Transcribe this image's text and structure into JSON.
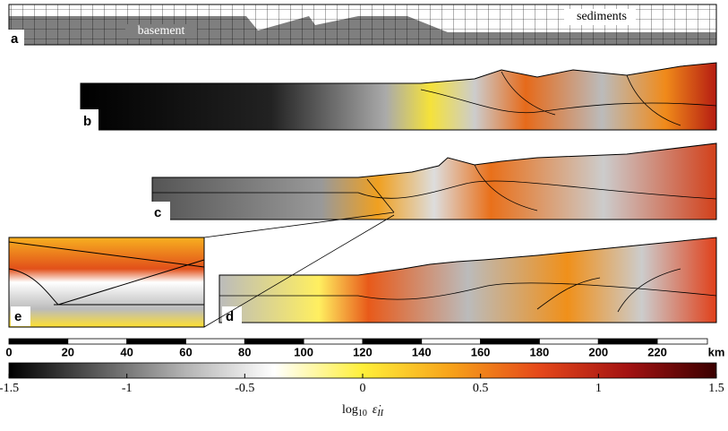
{
  "panels": {
    "a": {
      "label": "a",
      "basement": "basement",
      "sediments": "sediments"
    },
    "b": {
      "label": "b"
    },
    "c": {
      "label": "c"
    },
    "d": {
      "label": "d"
    },
    "e": {
      "label": "e"
    }
  },
  "scale_bar": {
    "xlim": [
      0,
      237
    ],
    "xticks": [
      0,
      20,
      40,
      60,
      80,
      100,
      120,
      140,
      160,
      180,
      200,
      220
    ],
    "unit": "km"
  },
  "colorbar": {
    "lim": [
      -1.5,
      1.5
    ],
    "ticks": [
      -1.5,
      -1,
      -0.5,
      0,
      0.5,
      1,
      1.5
    ],
    "colors": [
      "#000000",
      "#5a5a5a",
      "#b4b4b4",
      "#ffffff",
      "#ffef3a",
      "#f7a21a",
      "#e5481a",
      "#a31212",
      "#3a0000"
    ],
    "label": {
      "log": "log",
      "base": "10",
      "symbol": "ε̇",
      "sub": "II"
    }
  }
}
